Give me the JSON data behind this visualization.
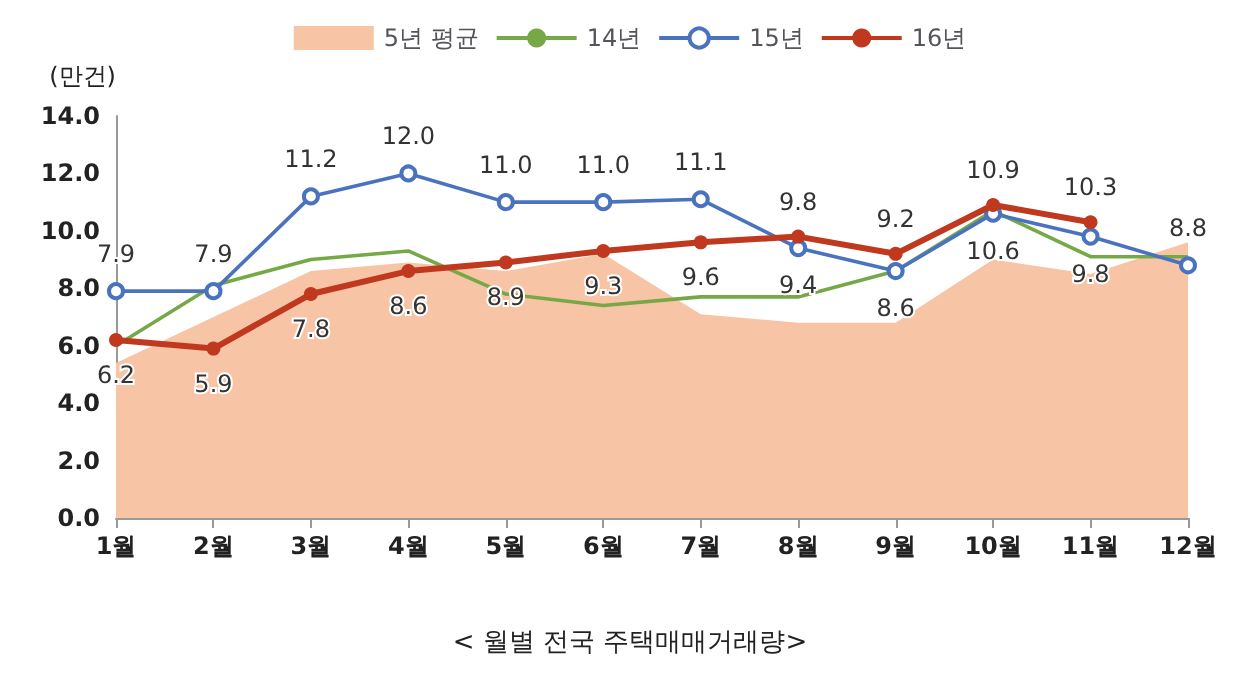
{
  "chart_data": {
    "type": "line",
    "title": "< 월별 전국 주택매매거래량>",
    "ylabel": "(만건)",
    "categories": [
      "1월",
      "2월",
      "3월",
      "4월",
      "5월",
      "6월",
      "7월",
      "8월",
      "9월",
      "10월",
      "11월",
      "12월"
    ],
    "ylim": [
      0,
      14
    ],
    "yticks": [
      {
        "value": 0,
        "label": "0.0"
      },
      {
        "value": 2,
        "label": "2.0"
      },
      {
        "value": 4,
        "label": "4.0"
      },
      {
        "value": 6,
        "label": "6.0"
      },
      {
        "value": 8,
        "label": "8.0"
      },
      {
        "value": 10,
        "label": "10.0"
      },
      {
        "value": 12,
        "label": "12.0"
      },
      {
        "value": 14,
        "label": "14.0"
      }
    ],
    "legend": "top",
    "grid": false,
    "series": [
      {
        "name": "5년 평균",
        "type": "area",
        "color": "#f7c4a5",
        "marker": "none",
        "values": [
          5.4,
          7.0,
          8.6,
          8.9,
          8.6,
          9.2,
          7.1,
          6.8,
          6.8,
          9.0,
          8.5,
          9.6
        ]
      },
      {
        "name": "14년",
        "color": "#77a846",
        "marker": "none",
        "values": [
          6.0,
          8.1,
          9.0,
          9.3,
          7.8,
          7.4,
          7.7,
          7.7,
          8.6,
          10.7,
          9.1,
          9.1
        ]
      },
      {
        "name": "15년",
        "color": "#4a73bf",
        "marker": "circle",
        "values": [
          7.9,
          7.9,
          11.2,
          12.0,
          11.0,
          11.0,
          11.1,
          9.4,
          8.6,
          10.6,
          9.8,
          8.8
        ],
        "value_labels": [
          "7.9",
          "7.9",
          "11.2",
          "12.0",
          "11.0",
          "11.0",
          "11.1",
          "9.4",
          "8.6",
          "10.6",
          "9.8",
          "8.8"
        ]
      },
      {
        "name": "16년",
        "color": "#c0391f",
        "marker": "circle",
        "values": [
          6.2,
          5.9,
          7.8,
          8.6,
          8.9,
          9.3,
          9.6,
          9.8,
          9.2,
          10.9,
          10.3,
          null
        ],
        "value_labels": [
          "6.2",
          "5.9",
          "7.8",
          "8.6",
          "8.9",
          "9.3",
          "9.6",
          "9.8",
          "9.2",
          "10.9",
          "10.3",
          null
        ]
      }
    ]
  }
}
